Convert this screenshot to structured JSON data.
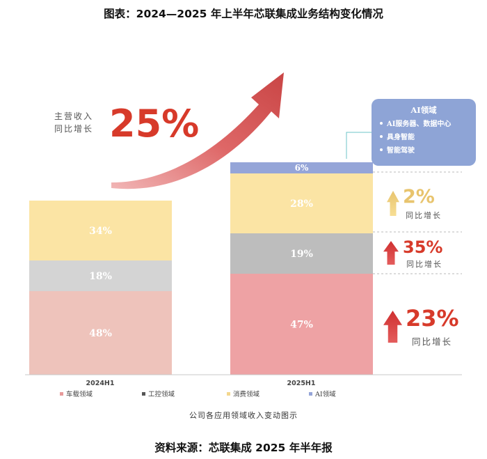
{
  "title": "图表：2024—2025 年上半年芯联集成业务结构变化情况",
  "source": "资料来源：芯联集成 2025 年半年报",
  "chart_data": {
    "type": "bar",
    "stacked": true,
    "categories": [
      "2024H1",
      "2025H1"
    ],
    "series": [
      {
        "name": "车载领域",
        "values": [
          48,
          47
        ],
        "color": "#eea2a4"
      },
      {
        "name": "工控领域",
        "values": [
          18,
          19
        ],
        "color": "#bdbdbd"
      },
      {
        "name": "消费领域",
        "values": [
          34,
          28
        ],
        "color": "#fbe4a4"
      },
      {
        "name": "AI领域",
        "values": [
          0,
          6
        ],
        "color": "#95a5d8"
      }
    ],
    "segment_labels": [
      [
        "48%",
        "18%",
        "34%"
      ],
      [
        "47%",
        "19%",
        "28%",
        "6%"
      ]
    ],
    "segment_colors_2024": [
      "#eec3bb",
      "#d4d4d4",
      "#fbe4a4"
    ],
    "xlabel": "公司各应用领域收入变动图示",
    "legend_position": "bottom",
    "overall_growth": {
      "label": [
        "主营收入",
        "同比增长"
      ],
      "value": "25%",
      "color": "#d73a2a"
    },
    "segment_growth": [
      {
        "segment": "消费领域",
        "value": "2%",
        "label": "同比增长",
        "color": "#e8c46e"
      },
      {
        "segment": "工控领域",
        "value": "35%",
        "label": "同比增长",
        "color": "#d73a2a"
      },
      {
        "segment": "车载领域",
        "value": "23%",
        "label": "同比增长",
        "color": "#d73a2a"
      }
    ],
    "ai_callout": {
      "title": "AI领域",
      "items": [
        "AI服务器、数据中心",
        "具身智能",
        "智能驾驶"
      ],
      "color": "#8ea4d6"
    }
  }
}
